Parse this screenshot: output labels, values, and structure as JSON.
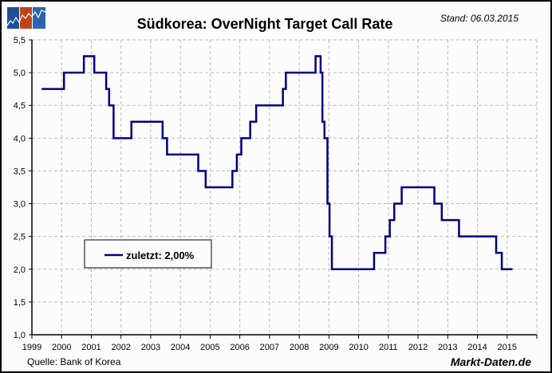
{
  "header": {
    "title": "Südkorea: OverNight Target Call Rate",
    "stand": "Stand: 06.03.2015"
  },
  "footer": {
    "source": "Quelle: Bank of Korea",
    "brand": "Markt-Daten.de"
  },
  "logo": {
    "colors": [
      "#1f4e99",
      "#c0431d",
      "#2e63b0"
    ]
  },
  "colors": {
    "line": "#000080",
    "grid": "#bbbbbb",
    "axis": "#000000"
  },
  "chart_data": {
    "type": "line",
    "style": "step",
    "title": "Südkorea: OverNight Target Call Rate",
    "xlabel": "",
    "ylabel": "",
    "xlim": [
      1999,
      2016
    ],
    "ylim": [
      1.0,
      5.5
    ],
    "grid": true,
    "x_ticks": [
      "1999",
      "2000",
      "2001",
      "2002",
      "2003",
      "2004",
      "2005",
      "2006",
      "2007",
      "2008",
      "2009",
      "2010",
      "2011",
      "2012",
      "2013",
      "2014",
      "2015"
    ],
    "y_ticks": [
      "1,0",
      "1,5",
      "2,0",
      "2,5",
      "3,0",
      "3,5",
      "4,0",
      "4,5",
      "5,0",
      "5,5"
    ],
    "y_tick_values": [
      1.0,
      1.5,
      2.0,
      2.5,
      3.0,
      3.5,
      4.0,
      4.5,
      5.0,
      5.5
    ],
    "legend": {
      "label": "zuletzt: 2,00%",
      "position": "lower-left"
    },
    "series": [
      {
        "name": "OverNight Target Call Rate",
        "steps": [
          [
            1999.33,
            4.75
          ],
          [
            2000.08,
            5.0
          ],
          [
            2000.75,
            5.25
          ],
          [
            2001.1,
            5.0
          ],
          [
            2001.5,
            4.75
          ],
          [
            2001.6,
            4.5
          ],
          [
            2001.75,
            4.0
          ],
          [
            2002.35,
            4.25
          ],
          [
            2003.4,
            4.0
          ],
          [
            2003.55,
            3.75
          ],
          [
            2004.6,
            3.5
          ],
          [
            2004.85,
            3.25
          ],
          [
            2005.75,
            3.5
          ],
          [
            2005.9,
            3.75
          ],
          [
            2006.05,
            4.0
          ],
          [
            2006.35,
            4.25
          ],
          [
            2006.55,
            4.5
          ],
          [
            2007.45,
            4.75
          ],
          [
            2007.55,
            5.0
          ],
          [
            2008.55,
            5.25
          ],
          [
            2008.72,
            5.0
          ],
          [
            2008.78,
            4.25
          ],
          [
            2008.85,
            4.0
          ],
          [
            2008.95,
            3.0
          ],
          [
            2009.02,
            2.5
          ],
          [
            2009.1,
            2.0
          ],
          [
            2010.52,
            2.25
          ],
          [
            2010.9,
            2.5
          ],
          [
            2011.05,
            2.75
          ],
          [
            2011.2,
            3.0
          ],
          [
            2011.45,
            3.25
          ],
          [
            2012.55,
            3.0
          ],
          [
            2012.8,
            2.75
          ],
          [
            2013.38,
            2.5
          ],
          [
            2014.63,
            2.25
          ],
          [
            2014.82,
            2.0
          ]
        ],
        "end_x": 2015.18
      }
    ]
  }
}
